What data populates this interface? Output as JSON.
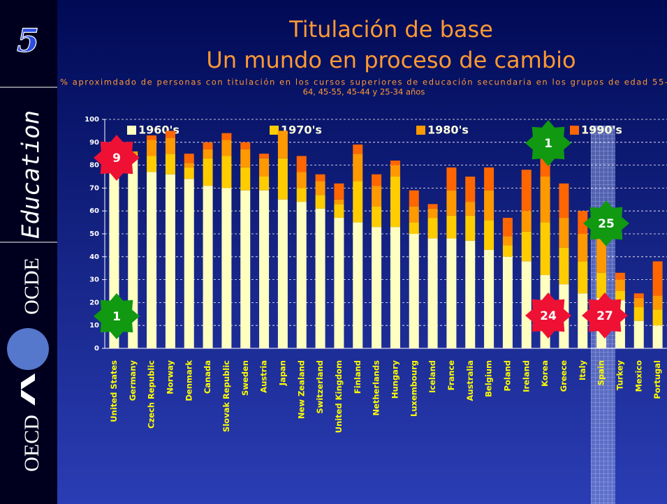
{
  "sidebar": {
    "number": "5",
    "word": "Education",
    "logo_top": "OCDE",
    "logo_bottom": "OECD"
  },
  "chart_data": {
    "type": "stacked_bar",
    "title": [
      "Titulación de base",
      "Un mundo en proceso de cambio"
    ],
    "subtitle": [
      "% aproximdado de personas con titulación en los cursos superiores de educación secundaria en los grupos de edad 55-",
      "64, 45-55, 45-44 y 25-34 años"
    ],
    "categories": [
      "United States",
      "Germany",
      "Czech Republic",
      "Norway",
      "Denmark",
      "Canada",
      "Slovak Republic",
      "Sweden",
      "Austria",
      "Japan",
      "New Zealand",
      "Switzerland",
      "United Kingdom",
      "Finland",
      "Netherlands",
      "Hungary",
      "Luxembourg",
      "Iceland",
      "France",
      "Australia",
      "Belgium",
      "Poland",
      "Ireland",
      "Korea",
      "Greece",
      "Italy",
      "Spain",
      "Turkey",
      "Mexico",
      "Portugal"
    ],
    "series": [
      {
        "name": "1960's",
        "color": "#ffffc0",
        "values": [
          84,
          84,
          77,
          76,
          74,
          71,
          70,
          69,
          69,
          65,
          64,
          61,
          57,
          55,
          53,
          53,
          50,
          48,
          48,
          47,
          43,
          40,
          38,
          32,
          28,
          24,
          22,
          21,
          12,
          10
        ]
      },
      {
        "name": "1970's",
        "color": "#ffcc00",
        "values": [
          2,
          1,
          7,
          9,
          5,
          12,
          14,
          10,
          6,
          18,
          6,
          6,
          6,
          18,
          9,
          22,
          5,
          9,
          10,
          11,
          13,
          5,
          13,
          23,
          16,
          14,
          11,
          4,
          6,
          7
        ]
      },
      {
        "name": "1980's",
        "color": "#ff9900",
        "values": [
          1,
          1,
          7,
          7,
          2,
          4,
          7,
          8,
          8,
          12,
          7,
          6,
          2,
          12,
          9,
          5,
          7,
          4,
          11,
          6,
          13,
          4,
          9,
          20,
          13,
          12,
          15,
          5,
          4,
          6
        ]
      },
      {
        "name": "1990's",
        "color": "#ff6600",
        "values": [
          0,
          0,
          2,
          3,
          4,
          3,
          3,
          3,
          2,
          0,
          7,
          3,
          7,
          4,
          5,
          2,
          7,
          2,
          10,
          11,
          10,
          8,
          18,
          13,
          15,
          10,
          9,
          3,
          2,
          15
        ]
      }
    ],
    "ylim": [
      0,
      100
    ],
    "yticks": [
      0,
      10,
      20,
      30,
      40,
      50,
      60,
      70,
      80,
      90,
      100
    ],
    "grid": true,
    "annotations": [
      {
        "text": "9",
        "color": "#ee1133"
      },
      {
        "text": "1",
        "color": "#119911"
      },
      {
        "text": "1",
        "color": "#119911"
      },
      {
        "text": "25",
        "color": "#119911"
      },
      {
        "text": "24",
        "color": "#ee1133"
      },
      {
        "text": "27",
        "color": "#ee1133"
      }
    ]
  }
}
